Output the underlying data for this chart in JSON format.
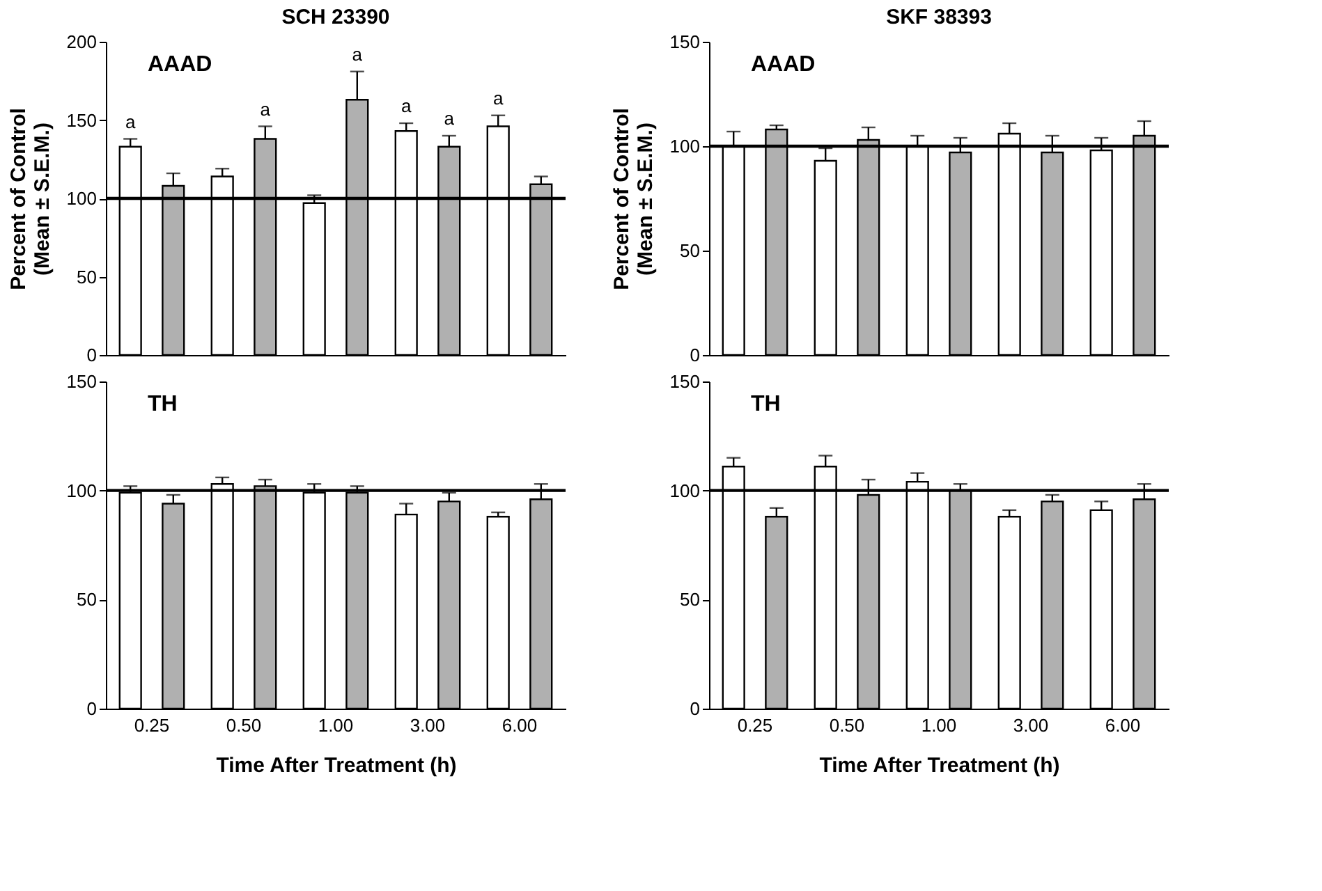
{
  "chart_data": [
    {
      "type": "bar",
      "title": "SCH 23390",
      "ylabel": "Percent of Control\n(Mean ± S.E.M.)",
      "categories": [
        "0.25",
        "0.50",
        "1.00",
        "3.00",
        "6.00"
      ],
      "tick_labels": "y",
      "grid": false,
      "legend": false,
      "ylim": [
        0,
        200
      ],
      "yticks": [
        0,
        50,
        100,
        150,
        200
      ],
      "series": [
        {
          "color": "#ffffff",
          "values": [
            133,
            114,
            97,
            143,
            146
          ],
          "errors": [
            5,
            5,
            5,
            5,
            7
          ],
          "value_labels": [
            "a",
            null,
            null,
            "a",
            "a"
          ]
        },
        {
          "color": "#b0b0b0",
          "values": [
            108,
            138,
            163,
            133,
            109
          ],
          "errors": [
            8,
            8,
            18,
            7,
            5
          ],
          "value_labels": [
            null,
            "a",
            "a",
            "a",
            null
          ]
        }
      ],
      "ref_lines": [
        {
          "axis": "y",
          "value": 100,
          "color": "#000000"
        }
      ],
      "annotations": [
        "AAAD"
      ]
    },
    {
      "type": "bar",
      "xlabel": "Time After Treatment (h)",
      "categories": [
        "0.25",
        "0.50",
        "1.00",
        "3.00",
        "6.00"
      ],
      "grid": false,
      "legend": false,
      "ylim": [
        0,
        150
      ],
      "yticks": [
        0,
        50,
        100,
        150
      ],
      "series": [
        {
          "color": "#ffffff",
          "values": [
            99,
            103,
            99,
            89,
            88
          ],
          "errors": [
            3,
            3,
            4,
            5,
            2
          ]
        },
        {
          "color": "#b0b0b0",
          "values": [
            94,
            102,
            99,
            95,
            96
          ],
          "errors": [
            4,
            3,
            3,
            4,
            7
          ]
        }
      ],
      "ref_lines": [
        {
          "axis": "y",
          "value": 100,
          "color": "#000000"
        }
      ],
      "annotations": [
        "TH"
      ]
    },
    {
      "type": "bar",
      "title": "SKF 38393",
      "ylabel": "Percent of Control\n(Mean ± S.E.M.)",
      "categories": [
        "0.25",
        "0.50",
        "1.00",
        "3.00",
        "6.00"
      ],
      "tick_labels": "y",
      "grid": false,
      "legend": false,
      "ylim": [
        0,
        150
      ],
      "yticks": [
        0,
        50,
        100,
        150
      ],
      "series": [
        {
          "color": "#ffffff",
          "values": [
            100,
            93,
            100,
            106,
            98
          ],
          "errors": [
            7,
            6,
            5,
            5,
            6
          ]
        },
        {
          "color": "#b0b0b0",
          "values": [
            108,
            103,
            97,
            97,
            105
          ],
          "errors": [
            2,
            6,
            7,
            8,
            7
          ]
        }
      ],
      "ref_lines": [
        {
          "axis": "y",
          "value": 100,
          "color": "#000000"
        }
      ],
      "annotations": [
        "AAAD"
      ]
    },
    {
      "type": "bar",
      "xlabel": "Time After Treatment (h)",
      "categories": [
        "0.25",
        "0.50",
        "1.00",
        "3.00",
        "6.00"
      ],
      "grid": false,
      "legend": false,
      "ylim": [
        0,
        150
      ],
      "yticks": [
        0,
        50,
        100,
        150
      ],
      "series": [
        {
          "color": "#ffffff",
          "values": [
            111,
            111,
            104,
            88,
            91
          ],
          "errors": [
            4,
            5,
            4,
            3,
            4
          ]
        },
        {
          "color": "#b0b0b0",
          "values": [
            88,
            98,
            100,
            95,
            96
          ],
          "errors": [
            4,
            7,
            3,
            3,
            7
          ]
        }
      ],
      "ref_lines": [
        {
          "axis": "y",
          "value": 100,
          "color": "#000000"
        }
      ],
      "annotations": [
        "TH"
      ]
    }
  ]
}
